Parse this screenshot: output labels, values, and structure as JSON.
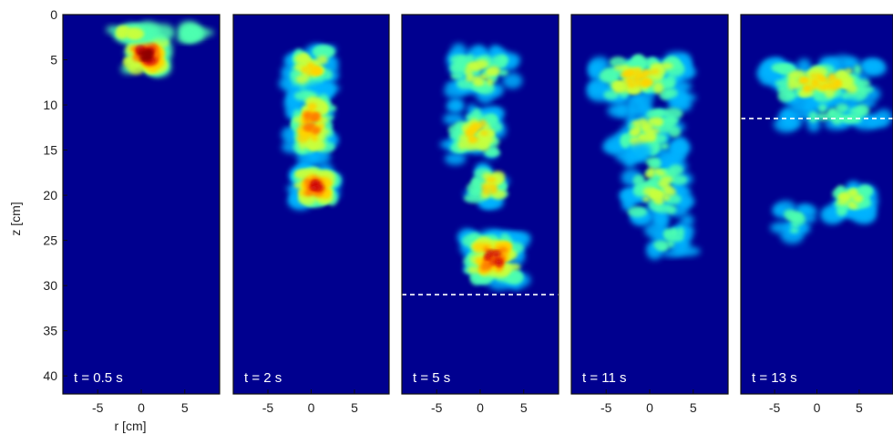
{
  "chart_data": {
    "type": "heatmap",
    "title": "",
    "xlabel": "r [cm]",
    "ylabel": "z [cm]",
    "xlim": [
      -9,
      9
    ],
    "ylim": [
      42,
      0
    ],
    "x_ticks": [
      -5,
      0,
      5
    ],
    "y_ticks": [
      0,
      5,
      10,
      15,
      20,
      25,
      30,
      35,
      40
    ],
    "colormap": "jet",
    "background_color": "#00008f",
    "panels": [
      {
        "time_label": "t = 0.5 s",
        "front_depth_cm": null
      },
      {
        "time_label": "t = 2 s",
        "front_depth_cm": null
      },
      {
        "time_label": "t = 5 s",
        "front_depth_cm": 31
      },
      {
        "time_label": "t = 11 s",
        "front_depth_cm": null
      },
      {
        "time_label": "t = 13 s",
        "front_depth_cm": 11.5
      }
    ]
  }
}
